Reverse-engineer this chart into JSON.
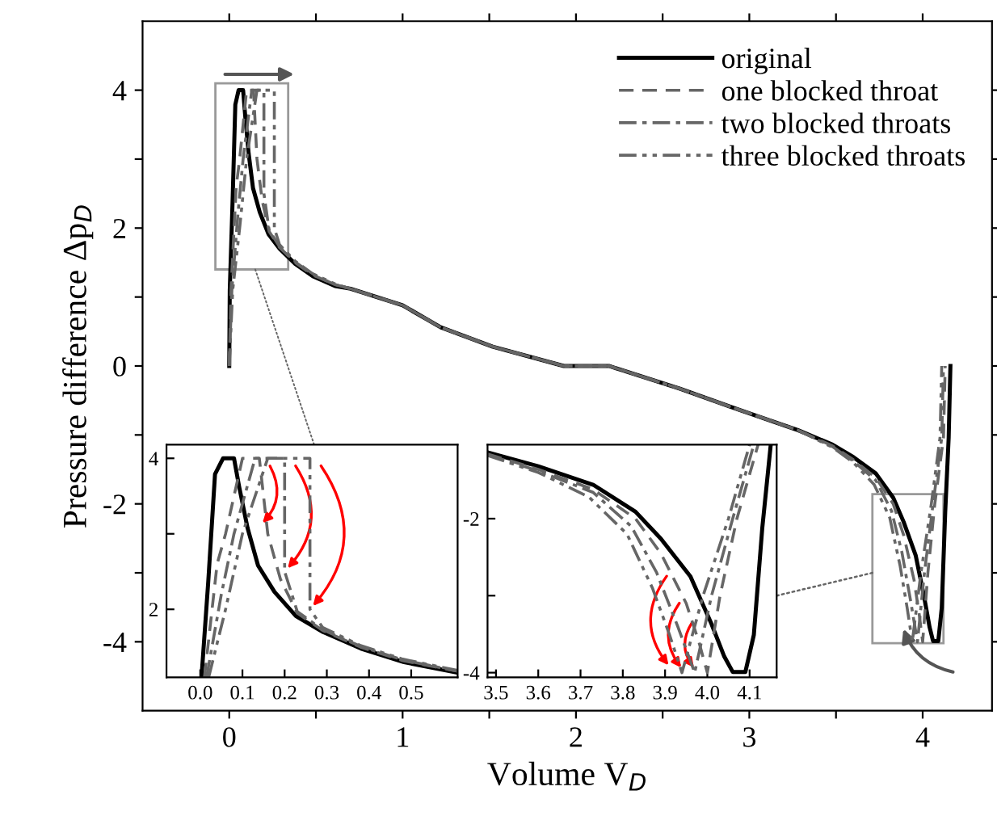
{
  "chart_data": [
    {
      "type": "line",
      "xlabel": "Volume V$_{D}$",
      "ylabel": "Pressure difference Δp$_{D}$",
      "xlim": [
        -0.5,
        4.4
      ],
      "ylim": [
        -5,
        5
      ],
      "xticks": [
        0,
        {
          "value": 0.5,
          "label": null
        },
        1,
        {
          "value": 1.5,
          "label": null
        },
        2,
        {
          "value": 2.5,
          "label": null
        },
        3,
        {
          "value": 3.5,
          "label": null
        },
        4
      ],
      "yticks": [
        -4,
        {
          "value": -3,
          "label": null
        },
        -2,
        {
          "value": -1,
          "label": null
        },
        0,
        {
          "value": 1,
          "label": null
        },
        2,
        {
          "value": 3,
          "label": null
        },
        4
      ],
      "legend": "top right",
      "series": [
        {
          "name": "original",
          "color": "#000000",
          "line_style": "solid",
          "x": [
            0.0,
            0.003,
            0.019,
            0.035,
            0.054,
            0.08,
            0.092,
            0.112,
            0.137,
            0.176,
            0.227,
            0.291,
            0.381,
            0.483,
            0.61,
            0.7,
            1.0,
            1.22,
            1.52,
            1.93,
            2.19,
            2.6,
            2.9,
            3.28,
            3.48,
            3.6,
            3.73,
            3.83,
            3.89,
            3.96,
            4.01,
            4.04,
            4.06,
            4.09,
            4.11,
            4.13,
            4.15,
            4.16
          ],
          "values": [
            0,
            1.1,
            2.37,
            3.79,
            4.0,
            4.0,
            3.63,
            3.08,
            2.58,
            2.23,
            1.91,
            1.7,
            1.48,
            1.3,
            1.16,
            1.12,
            0.88,
            0.56,
            0.28,
            0,
            0,
            -0.33,
            -0.6,
            -0.93,
            -1.14,
            -1.32,
            -1.56,
            -1.91,
            -2.26,
            -2.75,
            -3.37,
            -3.79,
            -3.99,
            -3.99,
            -3.51,
            -2.12,
            -1.04,
            0
          ]
        },
        {
          "name": "one blocked throat",
          "color": "#666666",
          "line_style": "dashed",
          "x": [
            0.0,
            0.01,
            0.04,
            0.06,
            0.1,
            0.14,
            0.16,
            0.19,
            0.23,
            0.29,
            0.38,
            0.48,
            0.61,
            0.7,
            1.0,
            1.22,
            1.52,
            1.93,
            2.19,
            2.6,
            2.9,
            3.28,
            3.48,
            3.6,
            3.73,
            3.83,
            3.89,
            3.95,
            3.98,
            4.0,
            4.03,
            4.07,
            4.12,
            4.13
          ],
          "values": [
            0,
            1.1,
            2.6,
            3.0,
            4.0,
            4.0,
            3.0,
            2.4,
            1.95,
            1.72,
            1.5,
            1.32,
            1.18,
            1.12,
            0.88,
            0.56,
            0.28,
            0,
            0,
            -0.33,
            -0.6,
            -0.93,
            -1.16,
            -1.36,
            -1.62,
            -2.0,
            -2.45,
            -3.1,
            -3.6,
            -4.0,
            -3.0,
            -2.0,
            -1.04,
            0
          ]
        },
        {
          "name": "two blocked throats",
          "color": "#666666",
          "line_style": "dashdot",
          "x": [
            0.0,
            0.015,
            0.05,
            0.08,
            0.13,
            0.2,
            0.2,
            0.23,
            0.29,
            0.38,
            0.48,
            0.61,
            0.7,
            1.0,
            1.22,
            1.52,
            1.93,
            2.19,
            2.6,
            2.9,
            3.28,
            3.48,
            3.6,
            3.73,
            3.82,
            3.88,
            3.93,
            3.97,
            4.01,
            4.06,
            4.11,
            4.12
          ],
          "values": [
            0,
            1.1,
            2.2,
            3.0,
            4.0,
            4.0,
            2.5,
            1.97,
            1.73,
            1.51,
            1.33,
            1.18,
            1.12,
            0.88,
            0.56,
            0.28,
            0,
            0,
            -0.33,
            -0.6,
            -0.93,
            -1.17,
            -1.38,
            -1.66,
            -2.1,
            -2.7,
            -3.4,
            -4.0,
            -3.0,
            -2.0,
            -1.04,
            0
          ]
        },
        {
          "name": "three blocked throats",
          "color": "#666666",
          "line_style": "dashdotdot",
          "x": [
            0.0,
            0.02,
            0.06,
            0.1,
            0.16,
            0.26,
            0.26,
            0.29,
            0.38,
            0.48,
            0.61,
            0.7,
            1.0,
            1.22,
            1.52,
            1.93,
            2.19,
            2.6,
            2.9,
            3.28,
            3.48,
            3.6,
            3.72,
            3.81,
            3.87,
            3.91,
            3.94,
            3.99,
            4.05,
            4.1,
            4.11
          ],
          "values": [
            0,
            1.1,
            2.0,
            3.0,
            4.0,
            4.0,
            2.0,
            1.76,
            1.52,
            1.34,
            1.19,
            1.12,
            0.88,
            0.56,
            0.28,
            0,
            0,
            -0.33,
            -0.6,
            -0.93,
            -1.18,
            -1.4,
            -1.72,
            -2.2,
            -2.9,
            -3.5,
            -4.0,
            -3.0,
            -2.0,
            -1.04,
            0
          ]
        }
      ]
    },
    {
      "type": "line",
      "xlim": [
        -0.08,
        0.61
      ],
      "ylim": [
        1.1,
        4.18
      ],
      "xticks": [
        {
          "value": 0.0,
          "label": "0.0"
        },
        {
          "value": 0.1,
          "label": "0.1"
        },
        {
          "value": 0.2,
          "label": "0.2"
        },
        {
          "value": 0.3,
          "label": "0.3"
        },
        {
          "value": 0.4,
          "label": "0.4"
        },
        {
          "value": 0.5,
          "label": "0.5"
        }
      ],
      "yticks": [
        2,
        {
          "value": 3,
          "label": null
        },
        4
      ],
      "series": [
        {
          "color": "#000000",
          "line_style": "solid",
          "x": [
            0.003,
            0.019,
            0.035,
            0.054,
            0.08,
            0.092,
            0.112,
            0.137,
            0.176,
            0.227,
            0.291,
            0.381,
            0.483,
            0.61
          ],
          "values": [
            1.1,
            2.37,
            3.79,
            4.0,
            4.0,
            3.63,
            3.08,
            2.58,
            2.23,
            1.91,
            1.7,
            1.48,
            1.3,
            1.16
          ]
        },
        {
          "color": "#666666",
          "line_style": "dashed",
          "x": [
            0.01,
            0.04,
            0.06,
            0.1,
            0.14,
            0.16,
            0.19,
            0.23,
            0.29,
            0.38,
            0.48,
            0.61
          ],
          "values": [
            1.1,
            2.6,
            3.0,
            4.0,
            4.0,
            3.0,
            2.4,
            1.95,
            1.72,
            1.5,
            1.32,
            1.18
          ]
        },
        {
          "color": "#666666",
          "line_style": "dashdot",
          "x": [
            0.015,
            0.05,
            0.08,
            0.13,
            0.2,
            0.2,
            0.23,
            0.29,
            0.38,
            0.48,
            0.61
          ],
          "values": [
            1.1,
            2.2,
            3.0,
            4.0,
            4.0,
            2.5,
            1.97,
            1.73,
            1.51,
            1.33,
            1.18
          ]
        },
        {
          "color": "#666666",
          "line_style": "dashdotdot",
          "x": [
            0.02,
            0.06,
            0.1,
            0.16,
            0.26,
            0.26,
            0.29,
            0.38,
            0.48,
            0.61
          ],
          "values": [
            1.1,
            2.0,
            3.0,
            4.0,
            4.0,
            2.0,
            1.76,
            1.52,
            1.34,
            1.19
          ]
        }
      ]
    },
    {
      "type": "line",
      "xlim": [
        3.48,
        4.164
      ],
      "ylim": [
        -4.06,
        -1.04
      ],
      "xticks": [
        3.5,
        3.6,
        3.7,
        3.8,
        3.9,
        {
          "value": 4.0,
          "label": "4.0"
        },
        4.1
      ],
      "yticks": [
        -4,
        {
          "value": -3,
          "label": null
        },
        -2
      ],
      "series": [
        {
          "color": "#000000",
          "line_style": "solid",
          "x": [
            3.48,
            3.6,
            3.73,
            3.83,
            3.89,
            3.96,
            4.01,
            4.04,
            4.06,
            4.09,
            4.11,
            4.13,
            4.15
          ],
          "values": [
            -1.14,
            -1.32,
            -1.56,
            -1.91,
            -2.26,
            -2.75,
            -3.37,
            -3.79,
            -3.99,
            -3.99,
            -3.51,
            -2.12,
            -1.04
          ]
        },
        {
          "color": "#666666",
          "line_style": "dashed",
          "x": [
            3.48,
            3.6,
            3.73,
            3.83,
            3.89,
            3.95,
            3.98,
            4.0,
            4.03,
            4.07,
            4.12
          ],
          "values": [
            -1.16,
            -1.36,
            -1.62,
            -2.0,
            -2.45,
            -3.1,
            -3.6,
            -4.0,
            -3.0,
            -2.0,
            -1.04
          ]
        },
        {
          "color": "#666666",
          "line_style": "dashdot",
          "x": [
            3.48,
            3.6,
            3.73,
            3.82,
            3.88,
            3.93,
            3.97,
            4.01,
            4.06,
            4.11
          ],
          "values": [
            -1.17,
            -1.38,
            -1.66,
            -2.1,
            -2.7,
            -3.4,
            -4.0,
            -3.0,
            -2.0,
            -1.04
          ]
        },
        {
          "color": "#666666",
          "line_style": "dashdotdot",
          "x": [
            3.48,
            3.6,
            3.72,
            3.81,
            3.87,
            3.91,
            3.94,
            3.99,
            4.05,
            4.1
          ],
          "values": [
            -1.18,
            -1.4,
            -1.72,
            -2.2,
            -2.9,
            -3.5,
            -4.0,
            -3.0,
            -2.0,
            -1.04
          ]
        }
      ]
    }
  ]
}
